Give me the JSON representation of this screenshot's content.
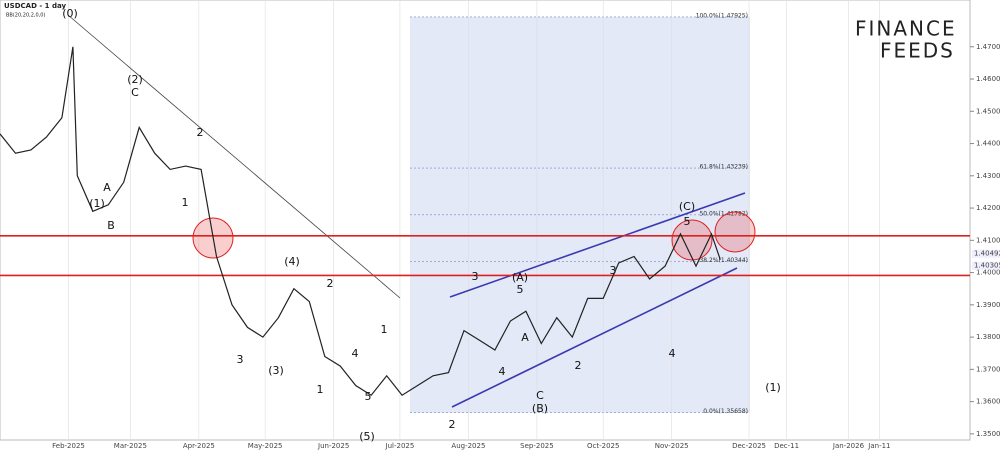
{
  "chart_data": {
    "type": "line",
    "title": "USDCAD - 1 day",
    "subtitle": "BB(20,20,2,0,0)",
    "logo": [
      "FINANCE",
      "FEEDS"
    ],
    "x": [
      0,
      7,
      14,
      21,
      28,
      33,
      35,
      42,
      49,
      56,
      63,
      70,
      77,
      84,
      91,
      98,
      105,
      112,
      119,
      126,
      133,
      140,
      147,
      154,
      161,
      168,
      175,
      182,
      189,
      196,
      203,
      210,
      217,
      224,
      231,
      238,
      245,
      252,
      259,
      266,
      273,
      280,
      287,
      294,
      301,
      308,
      315,
      322,
      326
    ],
    "series": [
      {
        "name": "USDCAD",
        "color": "#222222",
        "values": [
          1.443,
          1.437,
          1.438,
          1.442,
          1.448,
          1.47,
          1.43,
          1.419,
          1.421,
          1.428,
          1.445,
          1.437,
          1.432,
          1.433,
          1.432,
          1.405,
          1.39,
          1.383,
          1.38,
          1.386,
          1.395,
          1.391,
          1.374,
          1.371,
          1.365,
          1.362,
          1.368,
          1.362,
          1.365,
          1.368,
          1.369,
          1.382,
          1.379,
          1.376,
          1.385,
          1.388,
          1.378,
          1.386,
          1.38,
          1.392,
          1.392,
          1.403,
          1.405,
          1.398,
          1.402,
          1.412,
          1.402,
          1.412,
          1.404
        ]
      }
    ],
    "xlim": [
      0,
      439
    ],
    "xticks": [
      {
        "value": 31,
        "label": "Feb-2025"
      },
      {
        "value": 59,
        "label": "Mar-2025"
      },
      {
        "value": 90,
        "label": "Apr-2025"
      },
      {
        "value": 120,
        "label": "May-2025"
      },
      {
        "value": 151,
        "label": "Jun-2025"
      },
      {
        "value": 181,
        "label": "Jul-2025"
      },
      {
        "value": 212,
        "label": "Aug-2025"
      },
      {
        "value": 243,
        "label": "Sep-2025"
      },
      {
        "value": 273,
        "label": "Oct-2025"
      },
      {
        "value": 304,
        "label": "Nov-2025"
      },
      {
        "value": 339,
        "label": "Dec-2025"
      },
      {
        "value": 356,
        "label": "Dec-11"
      },
      {
        "value": 384,
        "label": "Jan-2026"
      },
      {
        "value": 398,
        "label": "Jan-11"
      }
    ],
    "ylim": [
      1.3481,
      1.4845
    ],
    "yticks": [
      {
        "value": 1.47,
        "label": "1.47000"
      },
      {
        "value": 1.46,
        "label": "1.46000"
      },
      {
        "value": 1.45,
        "label": "1.45000"
      },
      {
        "value": 1.44,
        "label": "1.44000"
      },
      {
        "value": 1.43,
        "label": "1.43000"
      },
      {
        "value": 1.42,
        "label": "1.42000"
      },
      {
        "value": 1.41,
        "label": "1.41000"
      },
      {
        "value": 1.4,
        "label": "1.40000"
      },
      {
        "value": 1.39,
        "label": "1.39000"
      },
      {
        "value": 1.38,
        "label": "1.38000"
      },
      {
        "value": 1.37,
        "label": "1.37000"
      },
      {
        "value": 1.36,
        "label": "1.36000"
      },
      {
        "value": 1.35,
        "label": "1.35000"
      }
    ],
    "price_labels": [
      {
        "value": 1.40492,
        "label": "1.40492"
      },
      {
        "value": 1.40305,
        "label": "1.40305"
      }
    ],
    "fib_levels": [
      {
        "price": 1.47925,
        "label": "100.0%(1.47925)"
      },
      {
        "price": 1.43239,
        "label": "61.8%(1.43239)"
      },
      {
        "price": 1.41792,
        "label": "50.0%(1.41792)"
      },
      {
        "price": 1.40344,
        "label": "38.2%(1.40344)"
      },
      {
        "price": 1.35658,
        "label": "0.0%(1.35658)"
      }
    ],
    "levels": [
      1.4114,
      1.3991
    ],
    "level_color": "#e02020",
    "annotations": [
      "(0)",
      "(2)",
      "C",
      "2",
      "A",
      "(1)",
      "B",
      "1",
      "(4)",
      "2",
      "4",
      "3",
      "(3)",
      "5",
      "(5)",
      "1",
      "1",
      "(A)",
      "5",
      "3",
      "C",
      "(B)",
      "2",
      "3",
      "5",
      "(C)",
      "4",
      "2",
      "4",
      "A",
      "(1)"
    ]
  }
}
